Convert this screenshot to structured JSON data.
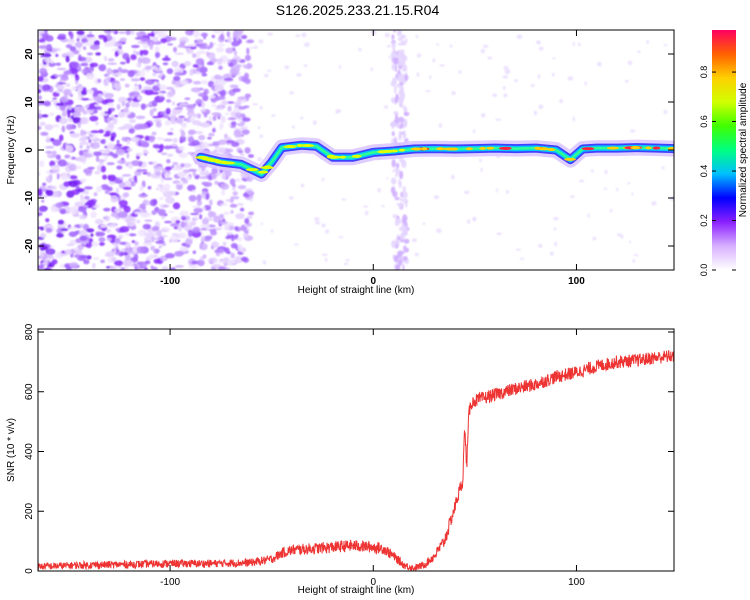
{
  "title": "S126.2025.233.21.15.R04",
  "colors": {
    "snr_line": "#ee3333",
    "spectrogram_noise": "#7a22ee",
    "colorbar_stops": [
      "#ffffff",
      "#d8b0ff",
      "#8a20ff",
      "#0000ff",
      "#00bfff",
      "#00ff80",
      "#40ff00",
      "#d0ff00",
      "#ffd000",
      "#ff6000",
      "#ff0060"
    ]
  },
  "chart_data": [
    {
      "type": "heatmap",
      "xlabel": "Height of straight line (km)",
      "ylabel": "Frequency (Hz)",
      "xlim": [
        -165,
        148
      ],
      "ylim": [
        -25,
        25
      ],
      "xticks": [
        -100,
        0,
        100
      ],
      "yticks": [
        -20,
        -10,
        0,
        10,
        20
      ],
      "colorbar": {
        "label": "Normalized spectral amplitude",
        "range": [
          0,
          0.97
        ],
        "ticks": [
          0.0,
          0.2,
          0.4,
          0.6,
          0.8
        ]
      },
      "tone_track": {
        "x": [
          -85,
          -75,
          -65,
          -55,
          -50,
          -45,
          -35,
          -28,
          -20,
          -10,
          0,
          10,
          20,
          30,
          40,
          50,
          60,
          70,
          80,
          90,
          97,
          103,
          110,
          120,
          130,
          140,
          148
        ],
        "y": [
          -1.5,
          -2.5,
          -3.0,
          -5.0,
          -2.5,
          0.5,
          1.0,
          0.8,
          -1.5,
          -1.5,
          -0.5,
          -0.2,
          0.2,
          0.3,
          0.2,
          0.3,
          0.4,
          0.3,
          0.4,
          0.0,
          -2.0,
          0.2,
          0.4,
          0.4,
          0.5,
          0.4,
          0.3
        ]
      },
      "noise_region_x": [
        -165,
        -60
      ],
      "vertical_noise_band_x": 13
    },
    {
      "type": "line",
      "xlabel": "Height of straight line (km)",
      "ylabel": "SNR (10 * v/v)",
      "xlim": [
        -165,
        148
      ],
      "ylim": [
        0,
        810
      ],
      "xticks": [
        -100,
        0,
        100
      ],
      "yticks": [
        0,
        200,
        400,
        600,
        800
      ],
      "series": [
        {
          "x": [
            -165,
            -140,
            -120,
            -100,
            -80,
            -60,
            -50,
            -45,
            -40,
            -30,
            -20,
            -10,
            0,
            5,
            10,
            15,
            20,
            25,
            30,
            35,
            40,
            42,
            44,
            45,
            46,
            47,
            48,
            50,
            60,
            70,
            80,
            90,
            100,
            110,
            120,
            130,
            140,
            148
          ],
          "y": [
            15,
            20,
            22,
            25,
            25,
            28,
            40,
            60,
            70,
            75,
            80,
            85,
            80,
            75,
            50,
            20,
            10,
            20,
            50,
            100,
            210,
            260,
            300,
            480,
            350,
            520,
            560,
            570,
            590,
            610,
            625,
            650,
            665,
            685,
            700,
            705,
            715,
            720
          ]
        }
      ]
    }
  ]
}
